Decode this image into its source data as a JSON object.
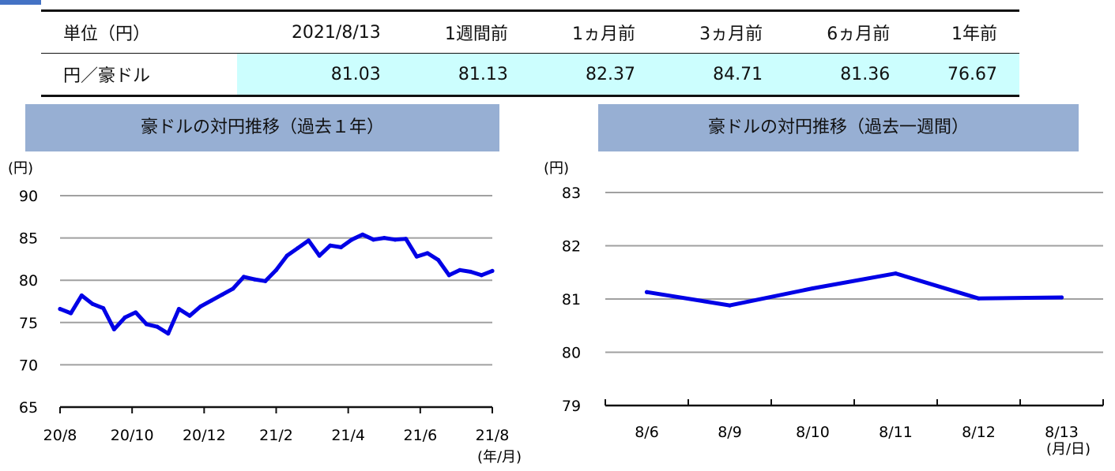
{
  "table": {
    "headers": [
      "単位（円）",
      "2021/8/13",
      "1週間前",
      "1ヵ月前",
      "3ヵ月前",
      "6ヵ月前",
      "1年前"
    ],
    "row_label": "円／豪ドル",
    "values": [
      "81.03",
      "81.13",
      "82.37",
      "84.71",
      "81.36",
      "76.67"
    ]
  },
  "colors": {
    "line": "#0000e6",
    "title_bar": "#97afd3",
    "highlight": "#ccfefe",
    "grid": "#a0a0a0"
  },
  "chart_data": [
    {
      "type": "line",
      "title": "豪ドルの対円推移（過去１年）",
      "y_unit": "(円)",
      "x_unit": "(年/月)",
      "ylim": [
        65,
        90
      ],
      "yticks": [
        "90",
        "85",
        "80",
        "75",
        "70",
        "65"
      ],
      "xticks": [
        "20/8",
        "20/10",
        "20/12",
        "21/2",
        "21/4",
        "21/6",
        "21/8"
      ],
      "grid": true,
      "x_months": [
        0,
        0.3,
        0.6,
        0.9,
        1.2,
        1.5,
        1.8,
        2.1,
        2.4,
        2.7,
        3.0,
        3.3,
        3.6,
        3.9,
        4.2,
        4.5,
        4.8,
        5.1,
        5.4,
        5.7,
        6.0,
        6.3,
        6.6,
        6.9,
        7.2,
        7.5,
        7.8,
        8.1,
        8.4,
        8.7,
        9.0,
        9.3,
        9.6,
        9.9,
        10.2,
        10.5,
        10.8,
        11.1,
        11.4,
        11.7,
        12.0
      ],
      "values": [
        76.6,
        76.1,
        78.2,
        77.2,
        76.7,
        74.2,
        75.6,
        76.2,
        74.8,
        74.5,
        73.7,
        76.6,
        75.8,
        76.9,
        77.6,
        78.3,
        79.0,
        80.4,
        80.1,
        79.9,
        81.2,
        82.9,
        83.8,
        84.7,
        82.9,
        84.1,
        83.9,
        84.8,
        85.4,
        84.8,
        85.0,
        84.8,
        84.9,
        82.8,
        83.2,
        82.4,
        80.6,
        81.2,
        81.0,
        80.6,
        81.1
      ]
    },
    {
      "type": "line",
      "title": "豪ドルの対円推移（過去一週間）",
      "y_unit": "(円)",
      "x_unit": "(月/日)",
      "ylim": [
        79,
        83
      ],
      "yticks": [
        "83",
        "82",
        "81",
        "80",
        "79"
      ],
      "categories": [
        "8/6",
        "8/9",
        "8/10",
        "8/11",
        "8/12",
        "8/13"
      ],
      "values": [
        81.13,
        80.88,
        81.2,
        81.48,
        81.01,
        81.03
      ],
      "grid": true
    }
  ]
}
